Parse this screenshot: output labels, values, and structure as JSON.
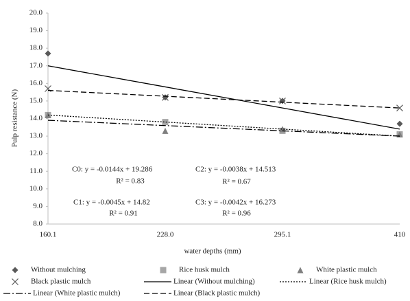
{
  "chart_data": {
    "type": "line",
    "y_label": "Pulp resistance (N)",
    "x_label": "water depths (mm)",
    "categories": [
      "160.1",
      "228.0",
      "295.1",
      "410"
    ],
    "ylim": [
      8,
      20
    ],
    "yticks": [
      {
        "value": 8,
        "label": "8.0"
      },
      {
        "value": 9,
        "label": "9.0"
      },
      {
        "value": 10,
        "label": "10.0"
      },
      {
        "value": 11,
        "label": "11.0"
      },
      {
        "value": 12,
        "label": "12.0"
      },
      {
        "value": 13,
        "label": "13.0"
      },
      {
        "value": 14,
        "label": "14.0"
      },
      {
        "value": 15,
        "label": "15.0"
      },
      {
        "value": 16,
        "label": "16.0"
      },
      {
        "value": 17,
        "label": "17.0"
      },
      {
        "value": 18,
        "label": "18.0"
      },
      {
        "value": 19,
        "label": "19.0"
      },
      {
        "value": 20,
        "label": "20.0"
      }
    ],
    "grid": false,
    "series": [
      {
        "name": "Without mulching",
        "color": "#595959",
        "marker": "diamond",
        "values": [
          17.7,
          15.2,
          15.0,
          13.7
        ]
      },
      {
        "name": "Rice husk mulch",
        "color": "#a6a6a6",
        "marker": "square",
        "values": [
          14.2,
          13.8,
          13.3,
          13.1
        ]
      },
      {
        "name": "White plastic mulch",
        "color": "#7f7f7f",
        "marker": "triangle",
        "values": [
          14.2,
          13.3,
          13.4,
          13.1
        ]
      },
      {
        "name": "Black plastic mulch",
        "color": "#595959",
        "marker": "cross",
        "values": [
          15.7,
          15.2,
          15.0,
          14.6
        ]
      },
      {
        "name": "Linear (Without mulching)",
        "color": "#000000",
        "dash": "solid",
        "values": [
          17.0,
          15.8,
          14.6,
          13.4
        ]
      },
      {
        "name": "Linear (Rice husk mulch)",
        "color": "#000000",
        "dash": "dot",
        "values": [
          14.2,
          13.8,
          13.4,
          13.0
        ]
      },
      {
        "name": "Linear (White plastic mulch)",
        "color": "#000000",
        "dash": "dashdot",
        "values": [
          13.9,
          13.6,
          13.3,
          13.0
        ]
      },
      {
        "name": "Linear (Black plastic mulch)",
        "color": "#000000",
        "dash": "dash",
        "values": [
          15.6,
          15.27,
          14.93,
          14.6
        ]
      }
    ],
    "annotations": [
      "C0: y = -0.0144x + 19.286",
      "R² = 0.83",
      "C2: y = -0.0038x + 14.513",
      "R² = 0.67",
      "C1: y = -0.0045x + 14.82",
      "R² = 0.91",
      "C3: y = -0.0042x + 16.273",
      "R² = 0.96"
    ]
  }
}
